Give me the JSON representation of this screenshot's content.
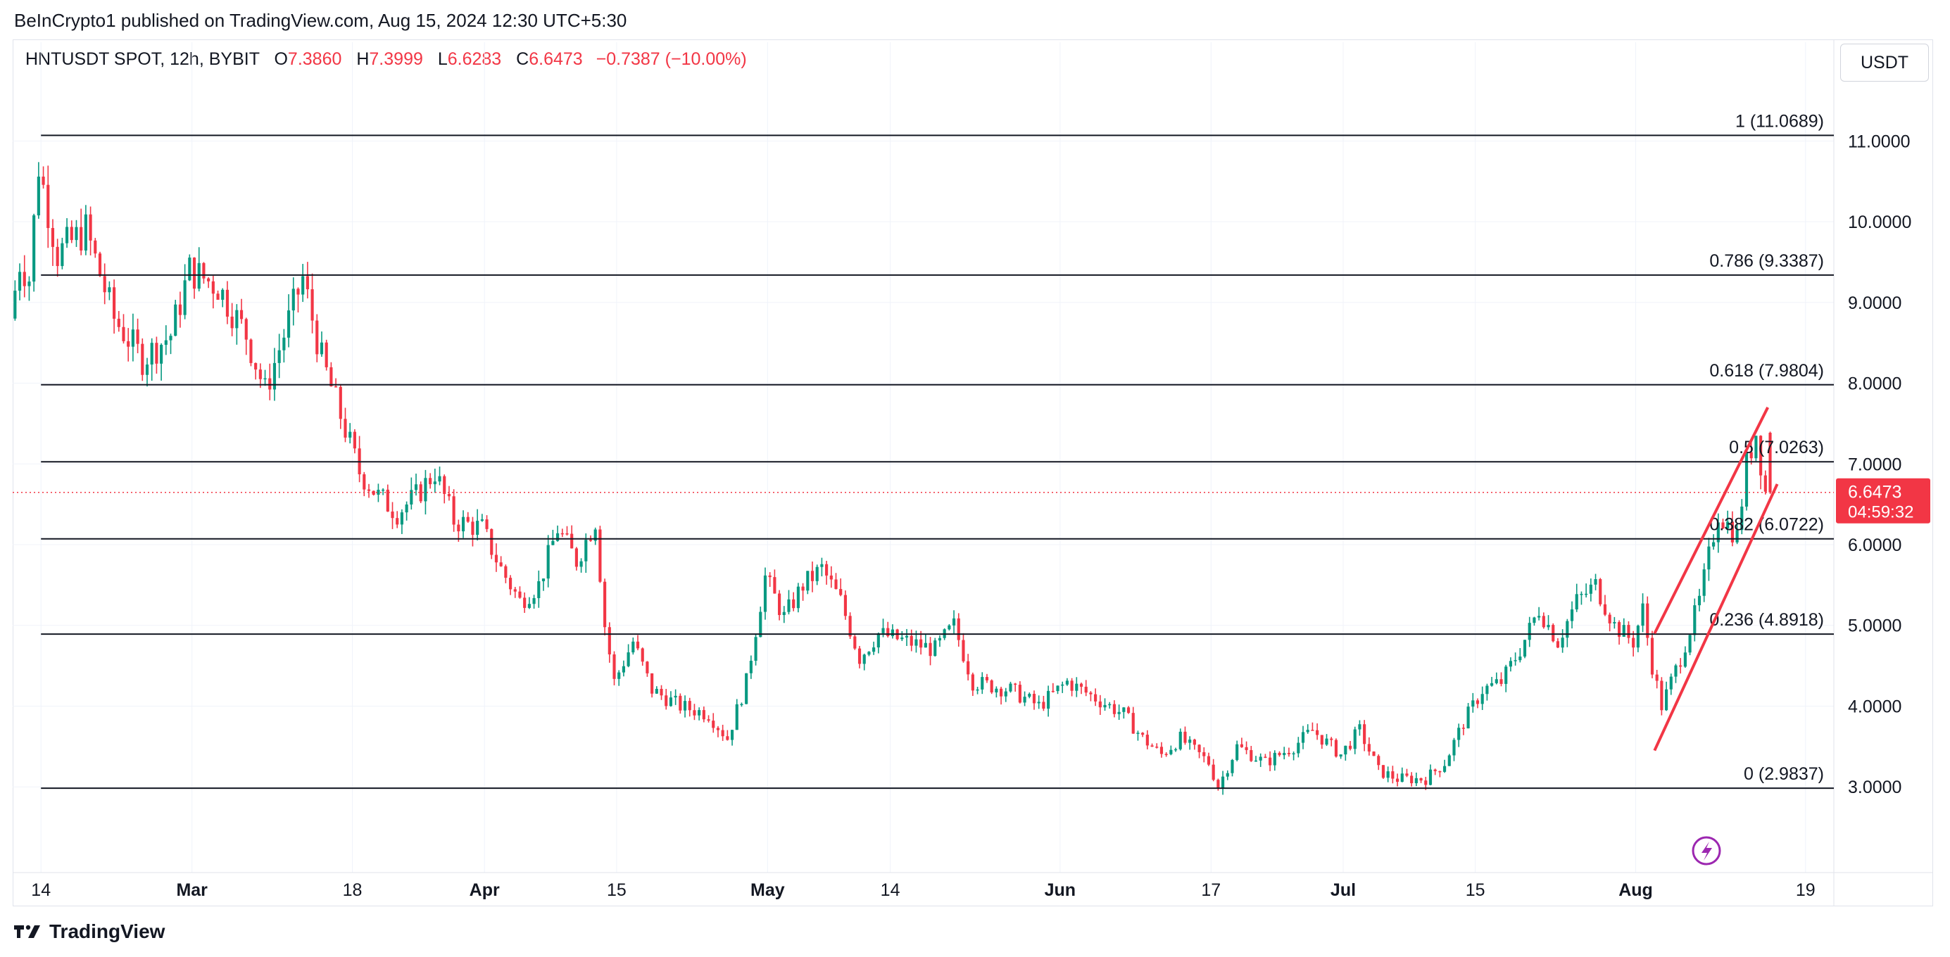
{
  "publisher": "BeInCrypto1 published on TradingView.com, Aug 15, 2024 12:30 UTC+5:30",
  "legend": {
    "symbol": "HNTUSDT SPOT, 12h, BYBIT",
    "o_label": "O",
    "o_value": "7.3860",
    "h_label": "H",
    "h_value": "7.3999",
    "l_label": "L",
    "l_value": "6.6283",
    "c_label": "C",
    "c_value": "6.6473",
    "change": "−0.7387 (−10.00%)"
  },
  "currency_button": "USDT",
  "footer_brand": "TradingView",
  "icons": {
    "brand": "tradingview-logo-icon",
    "flash": "lightning-icon"
  },
  "colors": {
    "up": "#089981",
    "down": "#f23645",
    "fib_line": "#131722",
    "channel": "#f23645",
    "flash": "#9c27b0"
  },
  "chart_data": {
    "type": "candlestick",
    "symbol": "HNTUSDT",
    "interval": "12h",
    "ylim": [
      2.2,
      11.7
    ],
    "y_ticks": [
      "11.0000",
      "10.0000",
      "9.0000",
      "8.0000",
      "7.0000",
      "6.0000",
      "5.0000",
      "4.0000",
      "3.0000"
    ],
    "y_tick_values": [
      11,
      10,
      9,
      8,
      7,
      6,
      5,
      4,
      3
    ],
    "x_range": [
      "2024-02-11",
      "2024-08-22"
    ],
    "x_ticks": [
      {
        "label": "14",
        "date": "2024-02-14"
      },
      {
        "label": "Mar",
        "date": "2024-03-01"
      },
      {
        "label": "18",
        "date": "2024-03-18"
      },
      {
        "label": "Apr",
        "date": "2024-04-01"
      },
      {
        "label": "15",
        "date": "2024-04-15"
      },
      {
        "label": "May",
        "date": "2024-05-01"
      },
      {
        "label": "14",
        "date": "2024-05-14"
      },
      {
        "label": "Jun",
        "date": "2024-06-01"
      },
      {
        "label": "17",
        "date": "2024-06-17"
      },
      {
        "label": "Jul",
        "date": "2024-07-01"
      },
      {
        "label": "15",
        "date": "2024-07-15"
      },
      {
        "label": "Aug",
        "date": "2024-08-01"
      },
      {
        "label": "19",
        "date": "2024-08-19"
      }
    ],
    "fibonacci": [
      {
        "label": "1 (11.0689)",
        "value": 11.0689
      },
      {
        "label": "0.786 (9.3387)",
        "value": 9.3387
      },
      {
        "label": "0.618 (7.9804)",
        "value": 7.9804
      },
      {
        "label": "0.5 (7.0263)",
        "value": 7.0263
      },
      {
        "label": "0.382 (6.0722)",
        "value": 6.0722
      },
      {
        "label": "0.236 (4.8918)",
        "value": 4.8918
      },
      {
        "label": "0 (2.9837)",
        "value": 2.9837
      }
    ],
    "fib_start_date": "2024-02-14",
    "current_price": {
      "value": 6.6473,
      "label": "6.6473",
      "countdown": "04:59:32"
    },
    "channel": {
      "lower": [
        {
          "date": "2024-08-03",
          "value": 3.45
        },
        {
          "date": "2024-08-16",
          "value": 6.75
        }
      ],
      "upper": [
        {
          "date": "2024-08-03",
          "value": 4.9
        },
        {
          "date": "2024-08-15",
          "value": 7.7
        }
      ]
    },
    "anchors": [
      {
        "date": "2024-02-11",
        "value": 8.8
      },
      {
        "date": "2024-02-12",
        "value": 9.5
      },
      {
        "date": "2024-02-13",
        "value": 9.3
      },
      {
        "date": "2024-02-14",
        "value": 10.7
      },
      {
        "date": "2024-02-16",
        "value": 9.6
      },
      {
        "date": "2024-02-19",
        "value": 9.9
      },
      {
        "date": "2024-02-22",
        "value": 8.8
      },
      {
        "date": "2024-02-25",
        "value": 8.3
      },
      {
        "date": "2024-02-28",
        "value": 8.6
      },
      {
        "date": "2024-03-01",
        "value": 9.4
      },
      {
        "date": "2024-03-04",
        "value": 9.2
      },
      {
        "date": "2024-03-07",
        "value": 8.6
      },
      {
        "date": "2024-03-09",
        "value": 7.9
      },
      {
        "date": "2024-03-11",
        "value": 8.6
      },
      {
        "date": "2024-03-13",
        "value": 9.3
      },
      {
        "date": "2024-03-15",
        "value": 8.3
      },
      {
        "date": "2024-03-17",
        "value": 7.6
      },
      {
        "date": "2024-03-19",
        "value": 6.9
      },
      {
        "date": "2024-03-21",
        "value": 6.6
      },
      {
        "date": "2024-03-23",
        "value": 6.4
      },
      {
        "date": "2024-03-25",
        "value": 6.6
      },
      {
        "date": "2024-03-27",
        "value": 6.9
      },
      {
        "date": "2024-03-29",
        "value": 6.3
      },
      {
        "date": "2024-04-01",
        "value": 6.2
      },
      {
        "date": "2024-04-03",
        "value": 5.7
      },
      {
        "date": "2024-04-05",
        "value": 5.3
      },
      {
        "date": "2024-04-07",
        "value": 5.5
      },
      {
        "date": "2024-04-09",
        "value": 6.2
      },
      {
        "date": "2024-04-11",
        "value": 5.8
      },
      {
        "date": "2024-04-13",
        "value": 6.3
      },
      {
        "date": "2024-04-14",
        "value": 5.0
      },
      {
        "date": "2024-04-15",
        "value": 4.3
      },
      {
        "date": "2024-04-17",
        "value": 4.8
      },
      {
        "date": "2024-04-19",
        "value": 4.2
      },
      {
        "date": "2024-04-22",
        "value": 4.0
      },
      {
        "date": "2024-04-25",
        "value": 3.9
      },
      {
        "date": "2024-04-27",
        "value": 3.6
      },
      {
        "date": "2024-04-29",
        "value": 4.3
      },
      {
        "date": "2024-05-01",
        "value": 5.6
      },
      {
        "date": "2024-05-03",
        "value": 5.1
      },
      {
        "date": "2024-05-05",
        "value": 5.5
      },
      {
        "date": "2024-05-07",
        "value": 5.7
      },
      {
        "date": "2024-05-09",
        "value": 5.3
      },
      {
        "date": "2024-05-11",
        "value": 4.6
      },
      {
        "date": "2024-05-13",
        "value": 4.9
      },
      {
        "date": "2024-05-16",
        "value": 4.8
      },
      {
        "date": "2024-05-19",
        "value": 4.7
      },
      {
        "date": "2024-05-21",
        "value": 5.0
      },
      {
        "date": "2024-05-23",
        "value": 4.3
      },
      {
        "date": "2024-05-27",
        "value": 4.2
      },
      {
        "date": "2024-05-30",
        "value": 4.0
      },
      {
        "date": "2024-06-02",
        "value": 4.3
      },
      {
        "date": "2024-06-05",
        "value": 4.1
      },
      {
        "date": "2024-06-08",
        "value": 3.9
      },
      {
        "date": "2024-06-10",
        "value": 3.6
      },
      {
        "date": "2024-06-12",
        "value": 3.4
      },
      {
        "date": "2024-06-14",
        "value": 3.6
      },
      {
        "date": "2024-06-17",
        "value": 3.3
      },
      {
        "date": "2024-06-18",
        "value": 3.0
      },
      {
        "date": "2024-06-20",
        "value": 3.5
      },
      {
        "date": "2024-06-23",
        "value": 3.3
      },
      {
        "date": "2024-06-26",
        "value": 3.5
      },
      {
        "date": "2024-06-28",
        "value": 3.7
      },
      {
        "date": "2024-07-01",
        "value": 3.4
      },
      {
        "date": "2024-07-03",
        "value": 3.7
      },
      {
        "date": "2024-07-05",
        "value": 3.2
      },
      {
        "date": "2024-07-07",
        "value": 3.1
      },
      {
        "date": "2024-07-10",
        "value": 3.1
      },
      {
        "date": "2024-07-12",
        "value": 3.3
      },
      {
        "date": "2024-07-14",
        "value": 3.8
      },
      {
        "date": "2024-07-16",
        "value": 4.2
      },
      {
        "date": "2024-07-18",
        "value": 4.3
      },
      {
        "date": "2024-07-20",
        "value": 4.7
      },
      {
        "date": "2024-07-22",
        "value": 5.2
      },
      {
        "date": "2024-07-24",
        "value": 4.8
      },
      {
        "date": "2024-07-26",
        "value": 5.3
      },
      {
        "date": "2024-07-28",
        "value": 5.5
      },
      {
        "date": "2024-07-30",
        "value": 5.0
      },
      {
        "date": "2024-08-01",
        "value": 4.8
      },
      {
        "date": "2024-08-02",
        "value": 5.2
      },
      {
        "date": "2024-08-03",
        "value": 4.5
      },
      {
        "date": "2024-08-04",
        "value": 4.0
      },
      {
        "date": "2024-08-06",
        "value": 4.6
      },
      {
        "date": "2024-08-08",
        "value": 5.3
      },
      {
        "date": "2024-08-10",
        "value": 6.4
      },
      {
        "date": "2024-08-12",
        "value": 6.1
      },
      {
        "date": "2024-08-13",
        "value": 7.0
      },
      {
        "date": "2024-08-14",
        "value": 7.39
      },
      {
        "date": "2024-08-15",
        "value": 6.65
      }
    ]
  }
}
